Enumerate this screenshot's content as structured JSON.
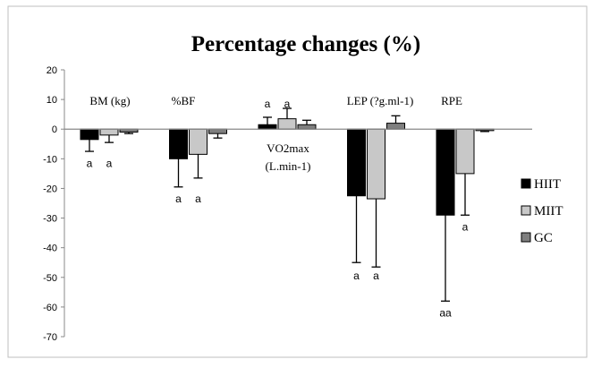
{
  "chart_data": {
    "type": "bar",
    "title": "Percentage changes (%)",
    "categories": [
      "BM (kg)",
      "%BF",
      "VO2max\n(L.min-1)",
      "LEP (?g.ml-1)",
      "RPE"
    ],
    "yticks": [
      20,
      10,
      0,
      -10,
      -20,
      -30,
      -40,
      -50,
      -60,
      -70
    ],
    "ylim": [
      -70,
      20
    ],
    "grid": false,
    "legend": "right",
    "series": [
      {
        "name": "HIIT",
        "color": "#000000",
        "values": [
          -3.5,
          -10,
          1.5,
          -22.5,
          -29
        ],
        "errors": [
          4,
          9.5,
          2.5,
          22.5,
          29
        ]
      },
      {
        "name": "MIIT",
        "color": "#c8c8c8",
        "values": [
          -2,
          -8.5,
          3.5,
          -23.5,
          -15
        ],
        "errors": [
          2.5,
          8,
          3.5,
          23,
          14
        ]
      },
      {
        "name": "GC",
        "color": "#7f7f7f",
        "values": [
          -1,
          -1.5,
          1.5,
          2,
          -0.5
        ],
        "errors": [
          0.5,
          1.5,
          1.5,
          2.5,
          0.3
        ]
      }
    ],
    "annotations": [
      {
        "text": "a",
        "category": 0,
        "series": 0,
        "y": -11.5
      },
      {
        "text": "a",
        "category": 0,
        "series": 1,
        "y": -11.5
      },
      {
        "text": "a",
        "category": 1,
        "series": 0,
        "y": -23.5
      },
      {
        "text": "a",
        "category": 1,
        "series": 1,
        "y": -23.5
      },
      {
        "text": "a",
        "category": 2,
        "series": 0,
        "y": 8.5
      },
      {
        "text": "a",
        "category": 2,
        "series": 1,
        "y": 8.5
      },
      {
        "text": "a",
        "category": 3,
        "series": 0,
        "y": -49.5
      },
      {
        "text": "a",
        "category": 3,
        "series": 1,
        "y": -49.5
      },
      {
        "text": "a",
        "category": 4,
        "series": 1,
        "y": -33
      },
      {
        "text": "aa",
        "category": 4,
        "series": 0,
        "y": -62
      }
    ]
  }
}
